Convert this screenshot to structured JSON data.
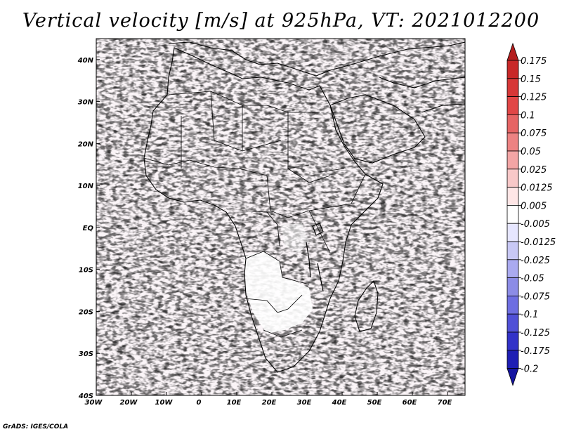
{
  "title": "Vertical velocity [m/s] at 925hPa, VT: 2021012200",
  "footer": "GrADS: IGES/COLA",
  "map": {
    "region": "Africa",
    "lon_labels": [
      "30W",
      "20W",
      "10W",
      "0",
      "10E",
      "20E",
      "30E",
      "40E",
      "50E",
      "60E",
      "70E"
    ],
    "lat_labels": [
      "40N",
      "30N",
      "20N",
      "10N",
      "EQ",
      "10S",
      "20S",
      "30S",
      "40S"
    ],
    "lon_range": [
      -30,
      75
    ],
    "lat_range": [
      -40,
      45
    ]
  },
  "colorbar": {
    "labels": [
      "0.175",
      "0.15",
      "0.125",
      "0.1",
      "0.075",
      "0.05",
      "0.025",
      "0.0125",
      "0.005",
      "-0.005",
      "-0.0125",
      "-0.025",
      "-0.05",
      "-0.075",
      "-0.1",
      "-0.125",
      "-0.175",
      "-0.2"
    ],
    "colors": [
      "#b41e1e",
      "#c82828",
      "#d73737",
      "#e14646",
      "#e66464",
      "#ed8282",
      "#f3a5a5",
      "#f8c8c8",
      "#ffe6e6",
      "#ffffff",
      "#e6e6ff",
      "#c8c8f5",
      "#aaaaf0",
      "#8c8ce6",
      "#6e6ee1",
      "#5050d7",
      "#3232c8",
      "#1e1eb4",
      "#1414a0"
    ]
  }
}
